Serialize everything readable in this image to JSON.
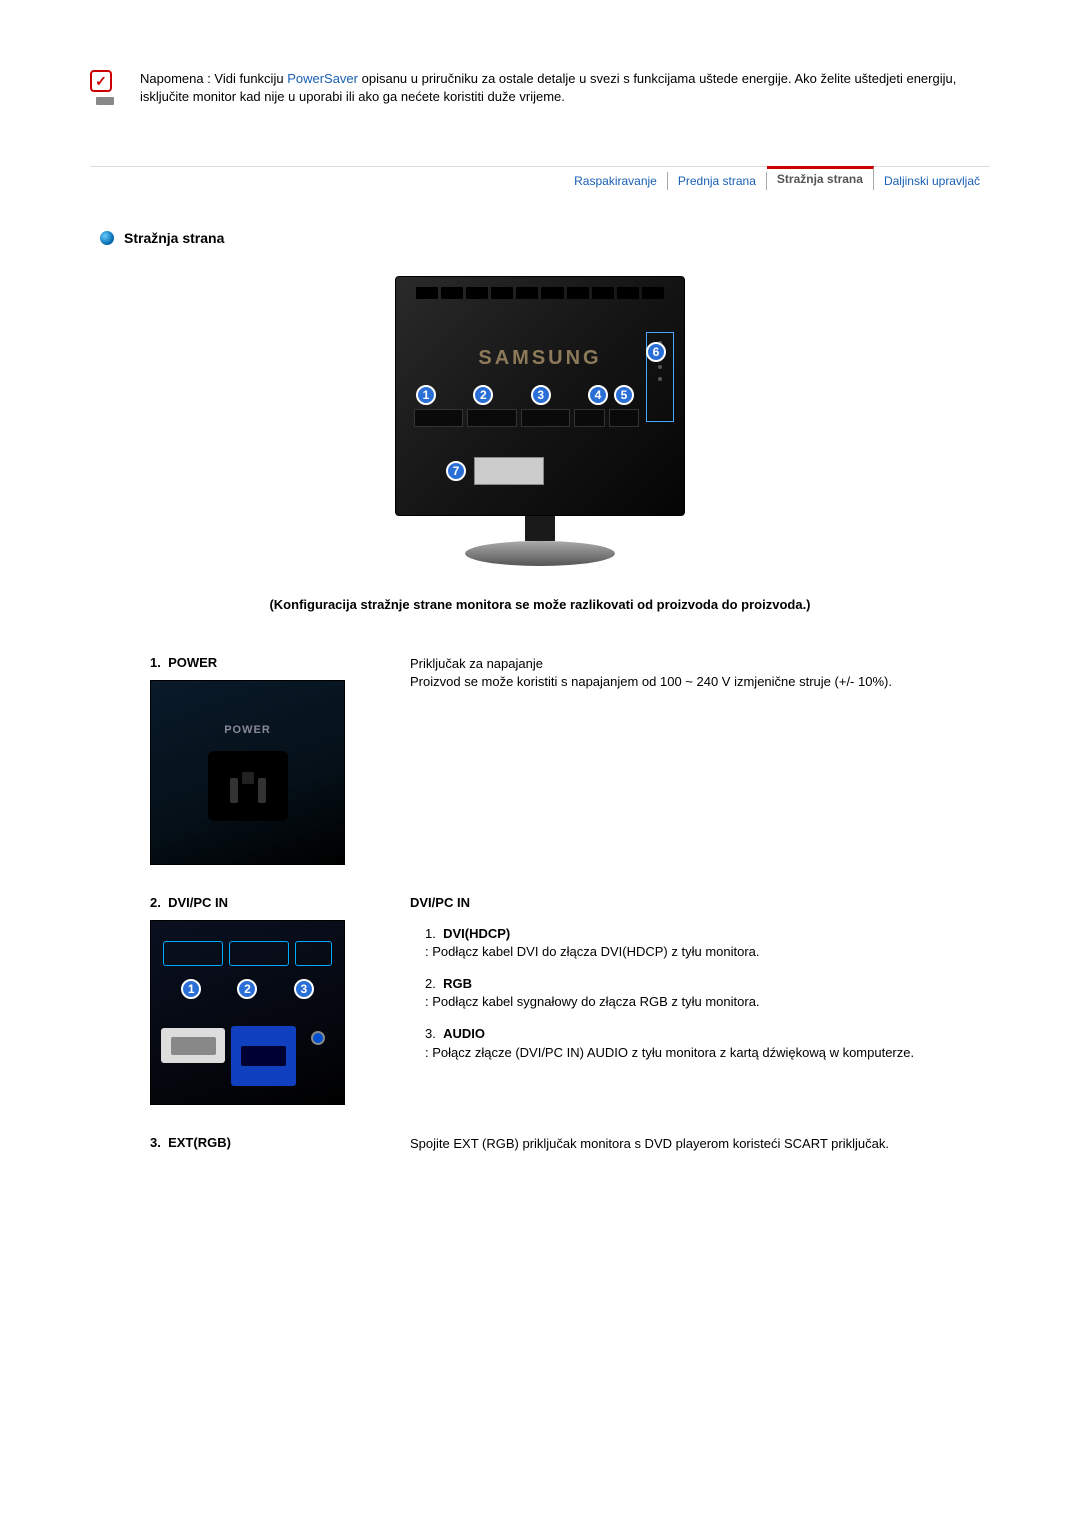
{
  "note": {
    "prefix": "Napomena : Vidi funkciju ",
    "link": "PowerSaver",
    "suffix": " opisanu u priručniku za ostale detalje u svezi s funkcijama uštede energije. Ako želite uštedjeti energiju, isključite monitor kad nije u uporabi ili ako ga nećete koristiti duže vrijeme."
  },
  "tabs": {
    "items": [
      {
        "label": "Raspakiravanje",
        "active": false
      },
      {
        "label": "Prednja strana",
        "active": false
      },
      {
        "label": "Stražnja strana",
        "active": true
      },
      {
        "label": "Daljinski upravljač",
        "active": false
      }
    ]
  },
  "section_title": "Stražnja strana",
  "monitor": {
    "logo": "SAMSUNG",
    "callouts": [
      "1",
      "2",
      "3",
      "4",
      "5",
      "6",
      "7"
    ]
  },
  "config_note": "(Konfiguracija stražnje strane monitora se može razlikovati od proizvoda do proizvoda.)",
  "items": [
    {
      "num": "1.",
      "title": "POWER",
      "image_label": "POWER",
      "desc": "Priključak za napajanje\nProizvod se može koristiti s napajanjem od 100 ~ 240 V izmjenične struje (+/- 10%)."
    },
    {
      "num": "2.",
      "title": "DVI/PC IN",
      "right_title": "DVI/PC IN",
      "sublist": [
        {
          "n": "1.",
          "label": "DVI(HDCP)",
          "desc": ": Podłącz kabel DVI do złącza DVI(HDCP) z tyłu monitora."
        },
        {
          "n": "2.",
          "label": "RGB",
          "desc": ": Podłącz kabel sygnałowy do złącza RGB z tyłu monitora."
        },
        {
          "n": "3.",
          "label": "AUDIO",
          "desc": ": Połącz złącze (DVI/PC IN) AUDIO z tyłu monitora z kartą dźwiękową w komputerze."
        }
      ]
    },
    {
      "num": "3.",
      "title": "EXT(RGB)",
      "desc": "Spojite EXT (RGB) priključak monitora s DVD playerom koristeći SCART priključak."
    }
  ],
  "colors": {
    "link": "#1a5fb4",
    "active_tab_border": "#c00",
    "callout_bg": "#2a6fd6",
    "vga_blue": "#1040c0"
  }
}
